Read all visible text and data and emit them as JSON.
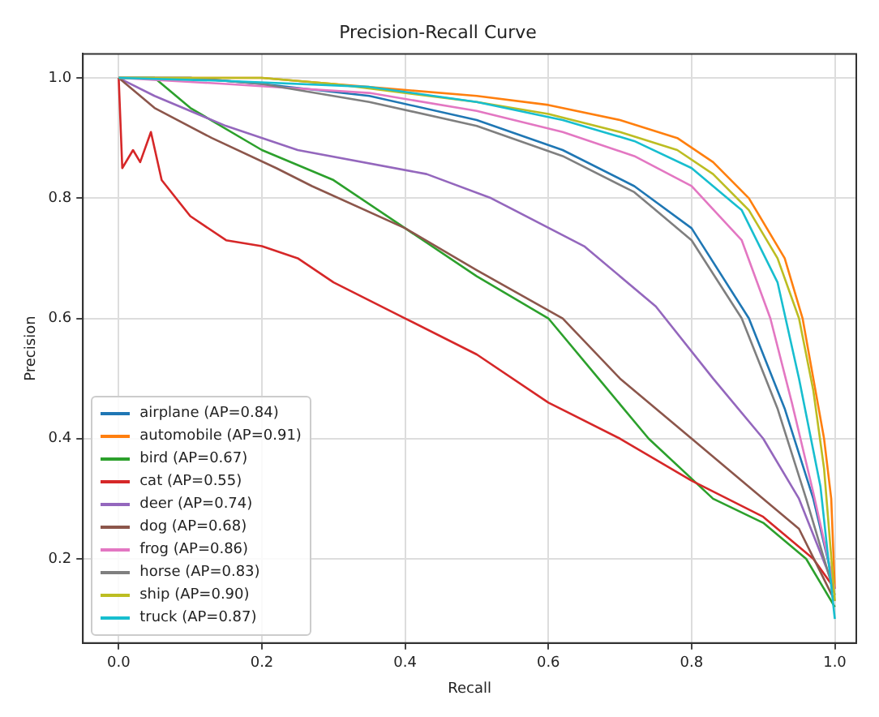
{
  "chart_data": {
    "type": "line",
    "title": "Precision-Recall Curve",
    "xlabel": "Recall",
    "ylabel": "Precision",
    "xlim": [
      -0.05,
      1.03
    ],
    "ylim": [
      0.06,
      1.04
    ],
    "xticks": [
      {
        "value": 0,
        "label": "0.0"
      },
      {
        "value": 0.2,
        "label": "0.2"
      },
      {
        "value": 0.4,
        "label": "0.4"
      },
      {
        "value": 0.6,
        "label": "0.6"
      },
      {
        "value": 0.8,
        "label": "0.8"
      },
      {
        "value": 1,
        "label": "1.0"
      }
    ],
    "yticks": [
      {
        "value": 0.2,
        "label": "0.2"
      },
      {
        "value": 0.4,
        "label": "0.4"
      },
      {
        "value": 0.6,
        "label": "0.6"
      },
      {
        "value": 0.8,
        "label": "0.8"
      },
      {
        "value": 1,
        "label": "1.0"
      }
    ],
    "grid": true,
    "legend": "bottom left",
    "marker": "none",
    "line_style": "solid",
    "series": [
      {
        "name": "airplane (AP=0.84)",
        "color": "#1f77b4",
        "x": [
          0,
          0.1,
          0.2,
          0.35,
          0.5,
          0.62,
          0.72,
          0.8,
          0.88,
          0.93,
          0.97,
          1.0
        ],
        "values": [
          1,
          1,
          0.99,
          0.97,
          0.93,
          0.88,
          0.82,
          0.75,
          0.6,
          0.45,
          0.3,
          0.15
        ]
      },
      {
        "name": "automobile (AP=0.91)",
        "color": "#ff7f0e",
        "x": [
          0,
          0.1,
          0.2,
          0.3,
          0.5,
          0.6,
          0.7,
          0.78,
          0.83,
          0.88,
          0.93,
          0.955,
          0.97,
          0.985,
          0.995,
          1.0
        ],
        "values": [
          1,
          1,
          1,
          0.99,
          0.97,
          0.955,
          0.93,
          0.9,
          0.86,
          0.8,
          0.7,
          0.6,
          0.5,
          0.4,
          0.3,
          0.15
        ]
      },
      {
        "name": "bird (AP=0.67)",
        "color": "#2ca02c",
        "x": [
          0,
          0.05,
          0.1,
          0.2,
          0.3,
          0.4,
          0.5,
          0.6,
          0.67,
          0.74,
          0.83,
          0.9,
          0.96,
          1.0
        ],
        "values": [
          1,
          1,
          0.95,
          0.88,
          0.83,
          0.75,
          0.67,
          0.6,
          0.5,
          0.4,
          0.3,
          0.26,
          0.2,
          0.12
        ]
      },
      {
        "name": "cat (AP=0.55)",
        "color": "#d62728",
        "x": [
          0,
          0.005,
          0.02,
          0.03,
          0.045,
          0.06,
          0.1,
          0.15,
          0.2,
          0.25,
          0.3,
          0.4,
          0.5,
          0.6,
          0.7,
          0.8,
          0.9,
          0.97,
          1.0
        ],
        "values": [
          1,
          0.85,
          0.88,
          0.86,
          0.91,
          0.83,
          0.77,
          0.73,
          0.72,
          0.7,
          0.66,
          0.6,
          0.54,
          0.46,
          0.4,
          0.33,
          0.27,
          0.2,
          0.15
        ]
      },
      {
        "name": "deer (AP=0.74)",
        "color": "#9467bd",
        "x": [
          0,
          0.05,
          0.15,
          0.25,
          0.43,
          0.52,
          0.65,
          0.75,
          0.83,
          0.9,
          0.95,
          1.0
        ],
        "values": [
          1,
          0.97,
          0.92,
          0.88,
          0.84,
          0.8,
          0.72,
          0.62,
          0.5,
          0.4,
          0.3,
          0.15
        ]
      },
      {
        "name": "dog (AP=0.68)",
        "color": "#8c564b",
        "x": [
          0,
          0.05,
          0.13,
          0.22,
          0.27,
          0.4,
          0.5,
          0.62,
          0.7,
          0.8,
          0.9,
          0.95,
          1.0
        ],
        "values": [
          1,
          0.95,
          0.9,
          0.85,
          0.82,
          0.75,
          0.68,
          0.6,
          0.5,
          0.4,
          0.3,
          0.25,
          0.13
        ]
      },
      {
        "name": "frog (AP=0.86)",
        "color": "#e377c2",
        "x": [
          0,
          0.15,
          0.35,
          0.5,
          0.62,
          0.72,
          0.8,
          0.87,
          0.91,
          0.94,
          0.97,
          1.0
        ],
        "values": [
          1,
          0.99,
          0.975,
          0.945,
          0.91,
          0.87,
          0.82,
          0.73,
          0.6,
          0.46,
          0.31,
          0.15
        ]
      },
      {
        "name": "horse (AP=0.83)",
        "color": "#7f7f7f",
        "x": [
          0,
          0.1,
          0.2,
          0.35,
          0.5,
          0.62,
          0.72,
          0.8,
          0.87,
          0.92,
          0.96,
          1.0
        ],
        "values": [
          1,
          1,
          0.99,
          0.96,
          0.92,
          0.87,
          0.81,
          0.73,
          0.6,
          0.45,
          0.3,
          0.14
        ]
      },
      {
        "name": "ship (AP=0.90)",
        "color": "#bcbd22",
        "x": [
          0,
          0.1,
          0.2,
          0.3,
          0.5,
          0.6,
          0.7,
          0.78,
          0.83,
          0.88,
          0.92,
          0.95,
          0.97,
          0.985,
          1.0
        ],
        "values": [
          1,
          1,
          1,
          0.99,
          0.96,
          0.94,
          0.91,
          0.88,
          0.84,
          0.78,
          0.7,
          0.6,
          0.48,
          0.35,
          0.13
        ]
      },
      {
        "name": "truck (AP=0.87)",
        "color": "#17becf",
        "x": [
          0,
          0.15,
          0.35,
          0.5,
          0.62,
          0.72,
          0.8,
          0.87,
          0.92,
          0.95,
          0.98,
          1.0
        ],
        "values": [
          1,
          0.995,
          0.985,
          0.96,
          0.93,
          0.895,
          0.85,
          0.78,
          0.66,
          0.5,
          0.32,
          0.1
        ]
      }
    ]
  }
}
